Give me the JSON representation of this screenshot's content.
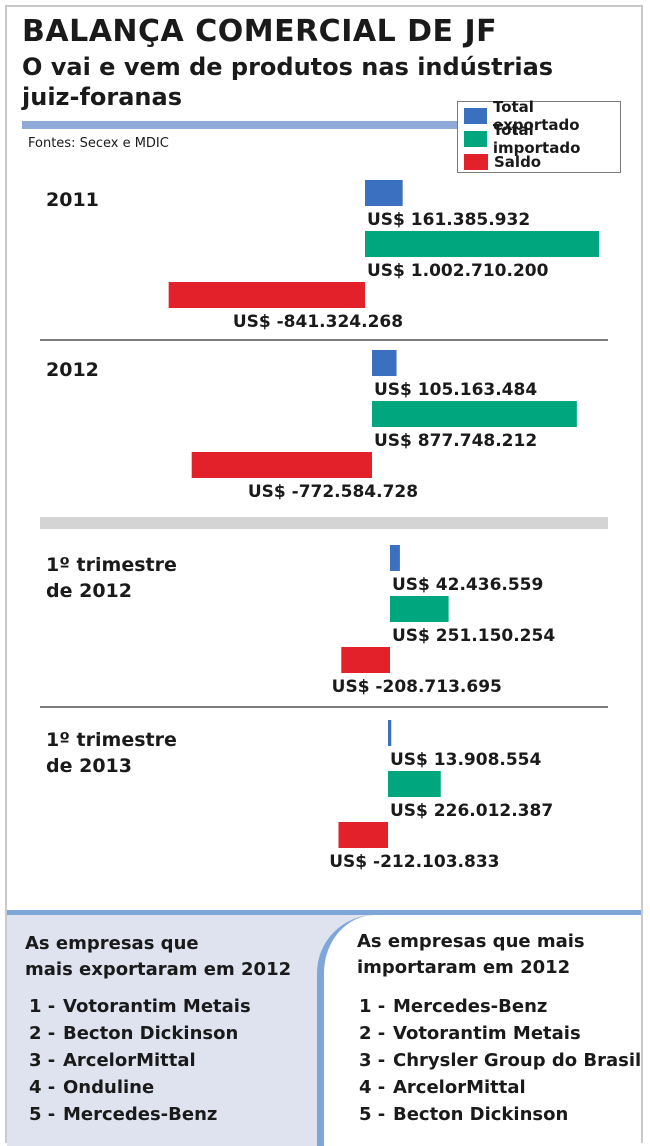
{
  "title": "BALANÇA COMERCIAL DE JF",
  "subtitle": "O vai e vem de produtos nas indústrias juiz-foranas",
  "source": "Fontes: Secex e MDIC",
  "colors": {
    "exportado": "#3b6fbf",
    "importado": "#00a77e",
    "saldo": "#e3212b",
    "rule": "#8faad9",
    "divider": "#d4d4d4"
  },
  "chart_data": {
    "type": "bar",
    "orientation": "horizontal",
    "currency": "US$",
    "legend": {
      "position": "top-right",
      "entries": [
        "Total exportado",
        "Total importado",
        "Saldo"
      ]
    },
    "groups": [
      {
        "label_lines": [
          "2011"
        ],
        "series": [
          {
            "name": "Total exportado",
            "value": 161385932,
            "label": "US$ 161.385.932"
          },
          {
            "name": "Total importado",
            "value": 1002710200,
            "label": "US$ 1.002.710.200"
          },
          {
            "name": "Saldo",
            "value": -841324268,
            "label": "US$ -841.324.268"
          }
        ]
      },
      {
        "label_lines": [
          "2012"
        ],
        "series": [
          {
            "name": "Total exportado",
            "value": 105163484,
            "label": "US$ 105.163.484"
          },
          {
            "name": "Total importado",
            "value": 877748212,
            "label": "US$ 877.748.212"
          },
          {
            "name": "Saldo",
            "value": -772584728,
            "label": "US$ -772.584.728"
          }
        ]
      },
      {
        "label_lines": [
          "1º trimestre",
          "de 2012"
        ],
        "series": [
          {
            "name": "Total exportado",
            "value": 42436559,
            "label": "US$ 42.436.559"
          },
          {
            "name": "Total importado",
            "value": 251150254,
            "label": "US$ 251.150.254"
          },
          {
            "name": "Saldo",
            "value": -208713695,
            "label": "US$ -208.713.695"
          }
        ]
      },
      {
        "label_lines": [
          "1º trimestre",
          "de 2013"
        ],
        "series": [
          {
            "name": "Total exportado",
            "value": 13908554,
            "label": "US$ 13.908.554"
          },
          {
            "name": "Total importado",
            "value": 226012387,
            "label": "US$ 226.012.387"
          },
          {
            "name": "Saldo",
            "value": -212103833,
            "label": "US$ -212.103.833"
          }
        ]
      }
    ]
  },
  "exporters": {
    "heading_line1": "As empresas que",
    "heading_line2": "mais exportaram em 2012",
    "items": [
      {
        "rank": "1 -",
        "name": "Votorantim Metais"
      },
      {
        "rank": "2 -",
        "name": "Becton Dickinson"
      },
      {
        "rank": "3 -",
        "name": "ArcelorMittal"
      },
      {
        "rank": "4 -",
        "name": "Onduline"
      },
      {
        "rank": "5 -",
        "name": "Mercedes-Benz"
      }
    ]
  },
  "importers": {
    "heading_line1": "As empresas que mais",
    "heading_line2": "importaram em 2012",
    "items": [
      {
        "rank": "1 -",
        "name": "Mercedes-Benz"
      },
      {
        "rank": "2 -",
        "name": "Votorantim Metais"
      },
      {
        "rank": "3 -",
        "name": "Chrysler Group do Brasil"
      },
      {
        "rank": "4 -",
        "name": "ArcelorMittal"
      },
      {
        "rank": "5 -",
        "name": "Becton Dickinson"
      }
    ]
  }
}
